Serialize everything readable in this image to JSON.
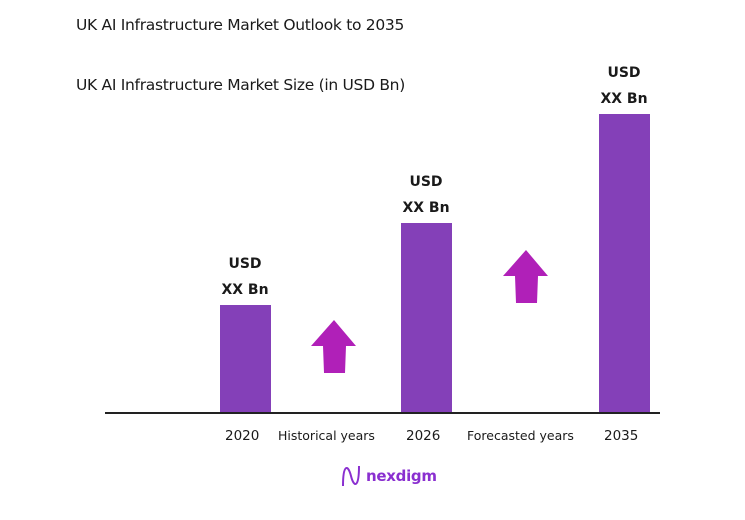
{
  "chart_data": {
    "type": "bar",
    "title": "UK AI Infrastructure Market Outlook to 2035",
    "subtitle": "UK AI Infrastructure Market Size (in USD Bn)",
    "categories": [
      "2020",
      "2026",
      "2035"
    ],
    "data_labels": [
      [
        "USD",
        "XX Bn"
      ],
      [
        "USD",
        "XX Bn"
      ],
      [
        "USD",
        "XX Bn"
      ]
    ],
    "period_labels": [
      "Historical years",
      "Forecasted years"
    ],
    "grid": false,
    "bar_color": "#8440B8",
    "arrow_color": "#B020B8"
  },
  "logo": {
    "text": "nexdigm"
  }
}
